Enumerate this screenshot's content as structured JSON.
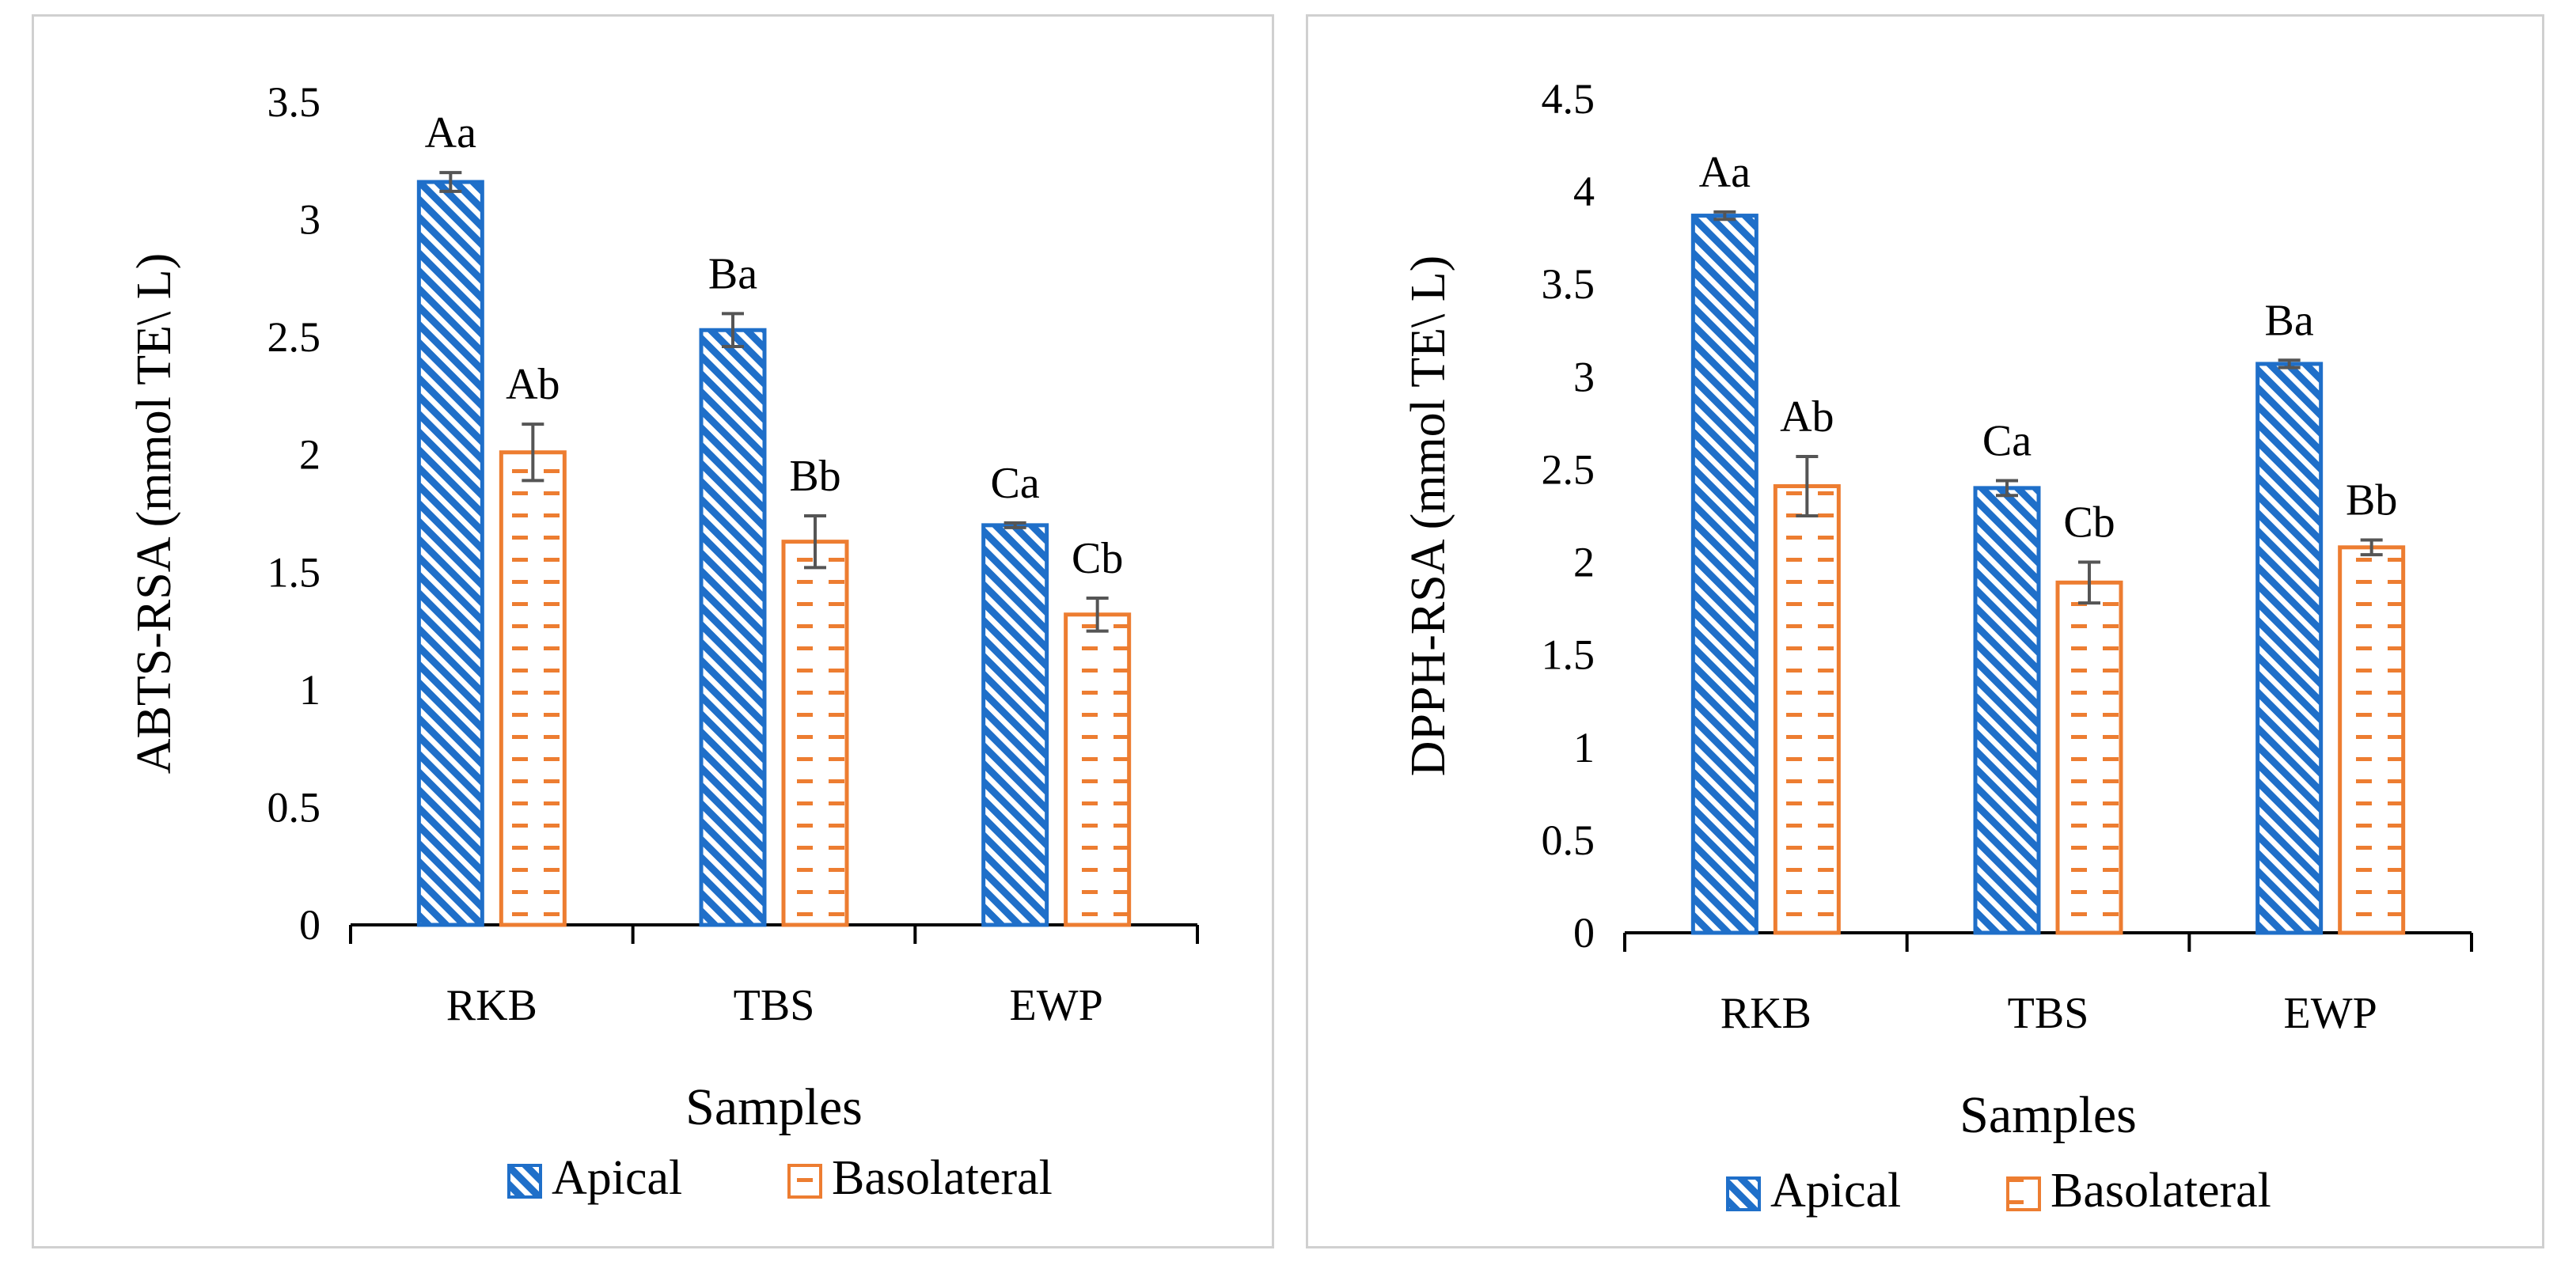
{
  "chart_data": [
    {
      "type": "bar",
      "categories": [
        "RKB",
        "TBS",
        "EWP"
      ],
      "xlabel": "Samples",
      "ylabel": "ABTS-RSA (mmol TE\\ L)",
      "ylim": [
        0,
        3.5
      ],
      "yticks": [
        "0",
        "0.5",
        "1",
        "1.5",
        "2",
        "2.5",
        "3",
        "3.5"
      ],
      "legend_position": "bottom",
      "series": [
        {
          "name": "Apical",
          "color": "#1f6fc9",
          "pattern": "diagonal-hatch",
          "values": [
            3.16,
            2.53,
            1.7
          ],
          "errors": [
            0.04,
            0.07,
            0.01
          ],
          "labels": [
            "Aa",
            "Ba",
            "Ca"
          ]
        },
        {
          "name": "Basolateral",
          "color": "#ed7d31",
          "pattern": "dashed-horizontal",
          "values": [
            2.01,
            1.63,
            1.32
          ],
          "errors": [
            0.12,
            0.11,
            0.07
          ],
          "labels": [
            "Ab",
            "Bb",
            "Cb"
          ]
        }
      ]
    },
    {
      "type": "bar",
      "categories": [
        "RKB",
        "TBS",
        "EWP"
      ],
      "xlabel": "Samples",
      "ylabel": "DPPH-RSA (mmol TE\\ L)",
      "ylim": [
        0,
        4.5
      ],
      "yticks": [
        "0",
        "0.5",
        "1",
        "1.5",
        "2",
        "2.5",
        "3",
        "3.5",
        "4",
        "4.5"
      ],
      "legend_position": "bottom",
      "series": [
        {
          "name": "Apical",
          "color": "#1f6fc9",
          "pattern": "diagonal-hatch",
          "values": [
            3.87,
            2.4,
            3.07
          ],
          "errors": [
            0.02,
            0.04,
            0.02
          ],
          "labels": [
            "Aa",
            "Ca",
            "Ba"
          ]
        },
        {
          "name": "Basolateral",
          "color": "#ed7d31",
          "pattern": "dashed-horizontal",
          "values": [
            2.41,
            1.89,
            2.08
          ],
          "errors": [
            0.16,
            0.11,
            0.04
          ],
          "labels": [
            "Ab",
            "Cb",
            "Bb"
          ]
        }
      ]
    }
  ]
}
